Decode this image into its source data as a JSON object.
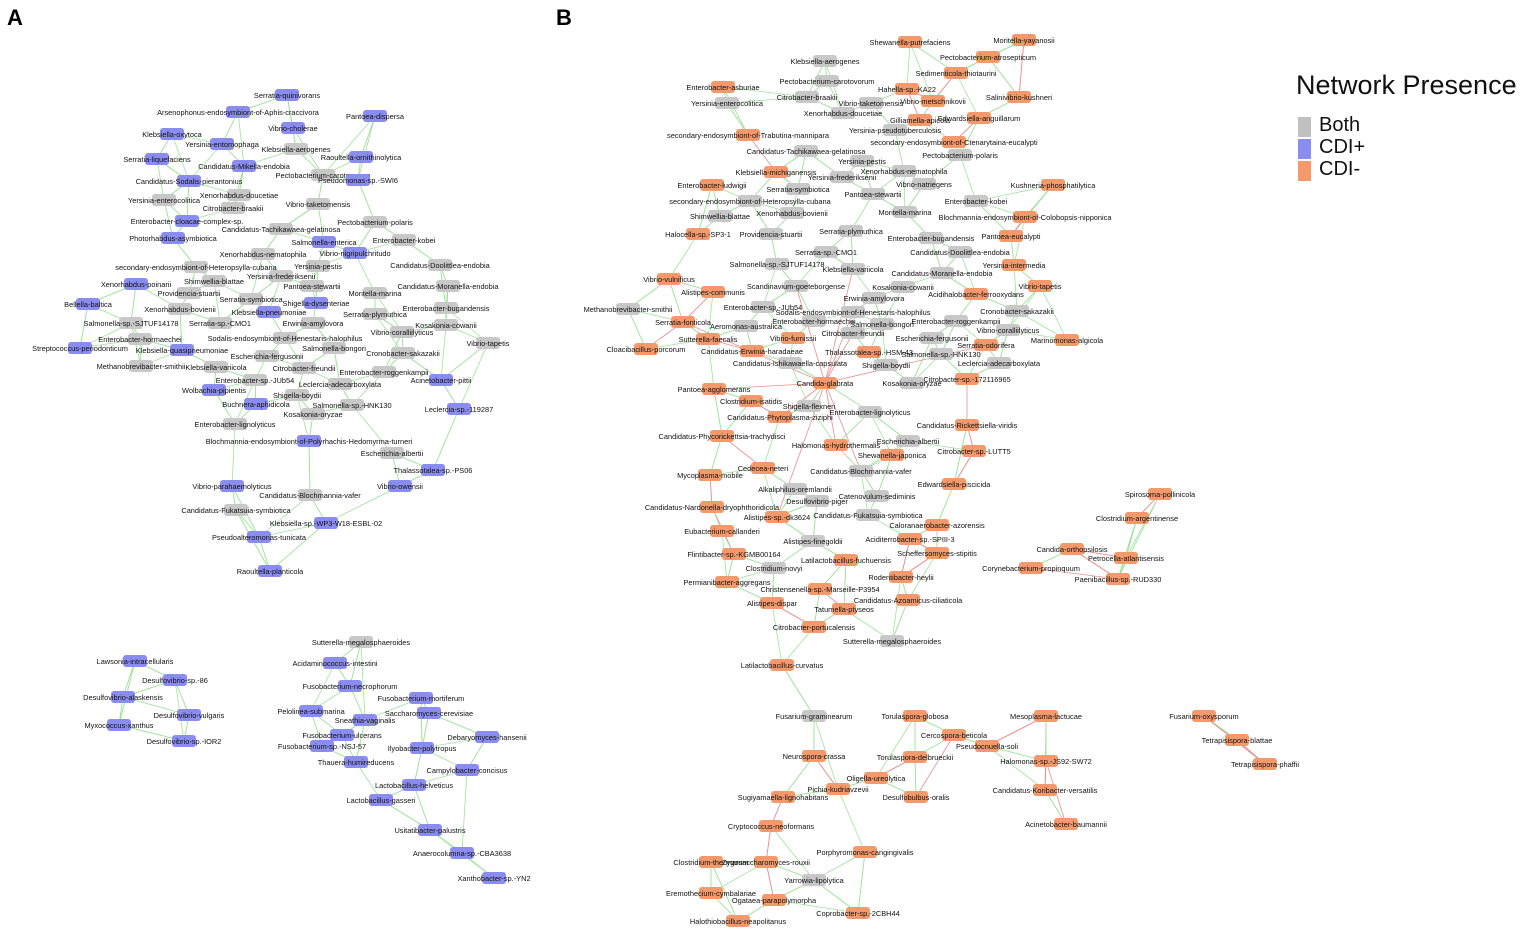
{
  "panels": {
    "a_label": "A",
    "b_label": "B"
  },
  "legend": {
    "title": "Network Presence",
    "items": [
      {
        "label": "Both",
        "color": "#c0c0c0"
      },
      {
        "label": "CDI+",
        "color": "#8a8cf0"
      },
      {
        "label": "CDI-",
        "color": "#f4996b"
      }
    ]
  },
  "colors": {
    "both": "#c8c8c8",
    "cdi_plus": "#8a8cf0",
    "cdi_minus": "#f4996b",
    "edge_positive": "#9fe39a",
    "edge_negative": "#e98f8f"
  },
  "panel_a_nodes": [
    "Serratia-quinivorans",
    "Arsenophonus-endosymbiont-of-Aphis-craccivora",
    "Pantoea-dispersa",
    "Vibrio-cholerae",
    "Klebsiella-oxytoca",
    "Yersinia-entomophaga",
    "Klebsiella-aerogenes",
    "Raoultella-ornithinolytica",
    "Serratia-liquefaciens",
    "Candidatus-Mikella-endobia",
    "Pectobacterium-carotovorum",
    "Pseudomonas-sp.-SWI6",
    "Candidatus-Sodalis-pierantonius",
    "Xenorhabdus-doucetiae",
    "Yersinia-enterocolitica",
    "Citrobacter-braakii",
    "Vibrio-taketomensis",
    "Enterobacter-cloacae-complex-sp.",
    "Pectobacterium-polaris",
    "Candidatus-Tachikawaea-gelatinosa",
    "Photorhabdus-asymbiotica",
    "Enterobacter-kobei",
    "Salmonella-enterica",
    "Vibrio-nigripulchritudo",
    "Xenorhabdus-nematophila",
    "Candidatus-Doolittlea-endobia",
    "secondary-endosymbiont-of-Heteropsylla-cubana",
    "Yersinia-pestis",
    "Yersinia-frederiksenii",
    "Xenorhabdus-poinarii",
    "Shimwellia-blattae",
    "Pantoea-stewartii",
    "Candidatus-Moranella-endobia",
    "Providencia-stuartii",
    "Moritella-marina",
    "Serratia-symbiotica",
    "Shigella-dysenteriae",
    "Bellella-baltica",
    "Xenorhabdus-bovienii",
    "Enterobacter-bugandensis",
    "Klebsiella-pneumoniae",
    "Serratia-plymuthica",
    "Salmonella-sp.-SJTUF14178",
    "Serratia-sp.-CMO1",
    "Erwinia-amylovora",
    "Kosakonia-cowanii",
    "Sodalis-endosymbiont-of-Henestaris-halophilus",
    "Vibrio-coralliilyticus",
    "Enterobacter-hormaechei",
    "Vibrio-tapetis",
    "Streptococcus-periodonticum",
    "Klebsiella-quasipneumoniae",
    "Salmonella-bongori",
    "Escherichia-fergusonii",
    "Cronobacter-sakazakii",
    "Methanobrevibacter-smithii",
    "Klebsiella-variicola",
    "Citrobacter-freundii",
    "Enterobacter-roggenkampii",
    "Enterobacter-sp.-JUb54",
    "Leclercia-adecarboxylata",
    "Acinetobacter-pittii",
    "Wolbachia-pipientis",
    "Shigella-boydii",
    "Buchnera-aphidicola",
    "Salmonella-sp.-HNK130",
    "Leclercia-sp.-119287",
    "Kosakonia-oryzae",
    "Enterobacter-lignolyticus",
    "Blochmannia-endosymbiont-of-Polyrhachis-Hedomyrma-turneri",
    "Escherichia-albertii",
    "Thalassotalea-sp.-PS06",
    "Vibrio-parahaemolyticus",
    "Vibrio-owensii",
    "Candidatus-Blochmannia-vafer",
    "Candidatus-Fukatsuia-symbiotica",
    "Klebsiella-sp.-WP3-W18-ESBL-02",
    "Pseudoalteromonas-tunicata",
    "Raoultella-planticola",
    "Sutterella-megalosphaeroides",
    "Lawsonia-intracellularis",
    "Acidaminococcus-intestini",
    "Desulfovibrio-sp.-86",
    "Fusobacterium-necrophorum",
    "Desulfovibrio-alaskensis",
    "Fusobacterium-mortiferum",
    "Pelolinea-submarina",
    "Saccharomyces-cerevisiae",
    "Desulfovibrio-vulgaris",
    "Sneathia-vaginalis",
    "Myxococcus-xanthus",
    "Fusobacterium-ulcerans",
    "Desulfovibrio-sp.-IOR2",
    "Debaryomyces-hansenii",
    "Fusobacterium-sp.-NSJ-57",
    "Ilyobacter-polytropus",
    "Thauera-humireducens",
    "Campylobacter-concisus",
    "Lactobacillus-helveticus",
    "Lactobacillus-gasseri",
    "Usitatibacter-palustris",
    "Anaerocolumna-sp.-CBA3638",
    "Xanthobacter-sp.-YN2"
  ],
  "panel_b_nodes": [
    "Shewanella-putrefaciens",
    "Moritella-yayanosii",
    "Klebsiella-aerogenes",
    "Pectobacterium-atrosepticum",
    "Sedimenticola-thiotaurini",
    "Pectobacterium-carotovorum",
    "Enterobacter-asburiae",
    "Hahella-sp.-KA22",
    "Salinivibrio-kushneri",
    "Citrobacter-braakii",
    "Vibrio-taketomensis",
    "Vibrio-metschnikovii",
    "Yersinia-enterocolitica",
    "Xenorhabdus-doucetiae",
    "Gilliamella-apicola",
    "Edwardsiella-anguillarum",
    "Yersinia-pseudotuberculosis",
    "secondary-endosymbiont-of-Trabutina-mannipara",
    "secondary-endosymbiont-of-Ctenarytaina-eucalypti",
    "Candidatus-Tachikawaea-gelatinosa",
    "Pectobacterium-polaris",
    "Yersinia-pestis",
    "Klebsiella-michiganensis",
    "Xenorhabdus-nematophila",
    "Yersinia-frederiksenii",
    "Vibrio-natriegens",
    "Enterobacter-ludwigii",
    "Kushneria-phosphatilytica",
    "Serratia-symbiotica",
    "Pantoea-stewartii",
    "secondary-endosymbiont-of-Heteropsylla-cubana",
    "Enterobacter-kobei",
    "Shimwellia-blattae",
    "Xenorhabdus-bovienii",
    "Moritella-marina",
    "Blochmannia-endosymbiont-of-Colobopsis-nipponica",
    "Halocella-sp.-SP3-1",
    "Providencia-stuartii",
    "Serratia-plymuthica",
    "Enterobacter-bugandensis",
    "Pantoea-eucalypti",
    "Serratia-sp.-CMO1",
    "Candidatus-Doolittlea-endobia",
    "Salmonella-sp.-SJTUF14178",
    "Klebsiella-variicola",
    "Yersinia-intermedia",
    "Vibrio-vulnificus",
    "Candidatus-Moranella-endobia",
    "Scandinavium-goeteborgense",
    "Kosakonia-cowanii",
    "Vibrio-tapetis",
    "Alistipes-communis",
    "Acidihalobacter-ferrooxydans",
    "Erwinia-amylovora",
    "Enterobacter-sp.-JUb54",
    "Methanobrevibacter-smithii",
    "Sodalis-endosymbiont-of-Henestaris-halophilus",
    "Cronobacter-sakazakii",
    "Enterobacter-hormaechei",
    "Enterobacter-roggenkampii",
    "Serratia-fonticola",
    "Aeromonas-australica",
    "Salmonella-bongori",
    "Vibrio-coralliilyticus",
    "Citrobacter-freundii",
    "Sutterella-faecalis",
    "Vibrio-furnissii",
    "Escherichia-fergusonii",
    "Marinomonas-algicola",
    "Cloacibacillus-porcorum",
    "Candidatus-Erwinia-haradaeae",
    "Thalassotalea-sp.-HSM-43",
    "Serratia-odorifera",
    "Salmonella-sp.-HNK130",
    "Candidatus-Ishikawaella-capsulata",
    "Shigella-boydii",
    "Leclercia-adecarboxylata",
    "Citrobacter-sp.-172116965",
    "Candida-glabrata",
    "Kosakonia-oryzae",
    "Pantoea-agglomerans",
    "Clostridium-isatidis",
    "Shigella-flexneri",
    "Enterobacter-lignolyticus",
    "Candidatus-Phytoplasma-ziziphi",
    "Candidatus-Rickettsiella-viridis",
    "Candidatus-Phycorickettsia-trachydisci",
    "Escherichia-albertii",
    "Halomonas-hydrothermalis",
    "Citrobacter-sp.-LUTT5",
    "Shewanella-japonica",
    "Cedecea-neteri",
    "Candidatus-Blochmannia-vafer",
    "Mycoplasma-mobile",
    "Edwardsiella-piscicida",
    "Alkaliphilus-oremlandii",
    "Spirosoma-pollinicola",
    "Catenovulum-sediminis",
    "Desulfovibrio-piger",
    "Candidatus-Nardonella-dryophthoridicola",
    "Alistipes-sp.-dk3624",
    "Candidatus-Fukatsuia-symbiotica",
    "Clostridium-argentinense",
    "Calorana­erobacter-azorensis",
    "Eubacterium-callanderi",
    "Aciditerrobacter-sp.-SPIII-3",
    "Alistipes-finegoldii",
    "Candida-orthopsilosis",
    "Flintibacter-sp.-KGMB00164",
    "Petrocella-atlantisensis",
    "Latilactobacillus-fuchuensis",
    "Scheffersomyces-stipitis",
    "Clostridium-novyi",
    "Corynebacterium-propinquum",
    "Rodentibacter-heylii",
    "Paenibacillus-sp.-RUD330",
    "Permianibacter-aggregans",
    "Christensenella-sp.-Marseille-P3954",
    "Candidatus-Azoamicus-ciliaticola",
    "Alistipes-dispar",
    "Tatumella-ptyseos",
    "Citrobacter-portucalensis",
    "Sutterella-megalosphaeroides",
    "Latilactobacillus-curvatus",
    "Fusarium-graminearum",
    "Torulaspora-globosa",
    "Mesoplasma-lactucae",
    "Fusarium-oxysporum",
    "Cercospora-beticola",
    "Pseudocnuella-soli",
    "Tetrapisispora-blattae",
    "Neurospora-crassa",
    "Torulaspora-delbrueckii",
    "Halomonas-sp.-JS92-SW72",
    "Tetrapisispora-phaffii",
    "Oligella-ureolytica",
    "Pichia-kudriavzevii",
    "Candidatus-Koribacter-versatilis",
    "Sugiyamaella-lignohabitans",
    "Desulfobulbus-oralis",
    "Acinetobacter-baumannii",
    "Cryptococcus-neoformans",
    "Porphyromonas-cangingivalis",
    "Clostridium-thermarum",
    "Zygosaccharomyces-rouxii",
    "Yarrowia-lipolytica",
    "Eremothecium-cymbalariae",
    "Ogataea-parapolymorpha",
    "Coprobacter-sp.-2CBH44",
    "Halothiobacillus-neapolitanus"
  ]
}
